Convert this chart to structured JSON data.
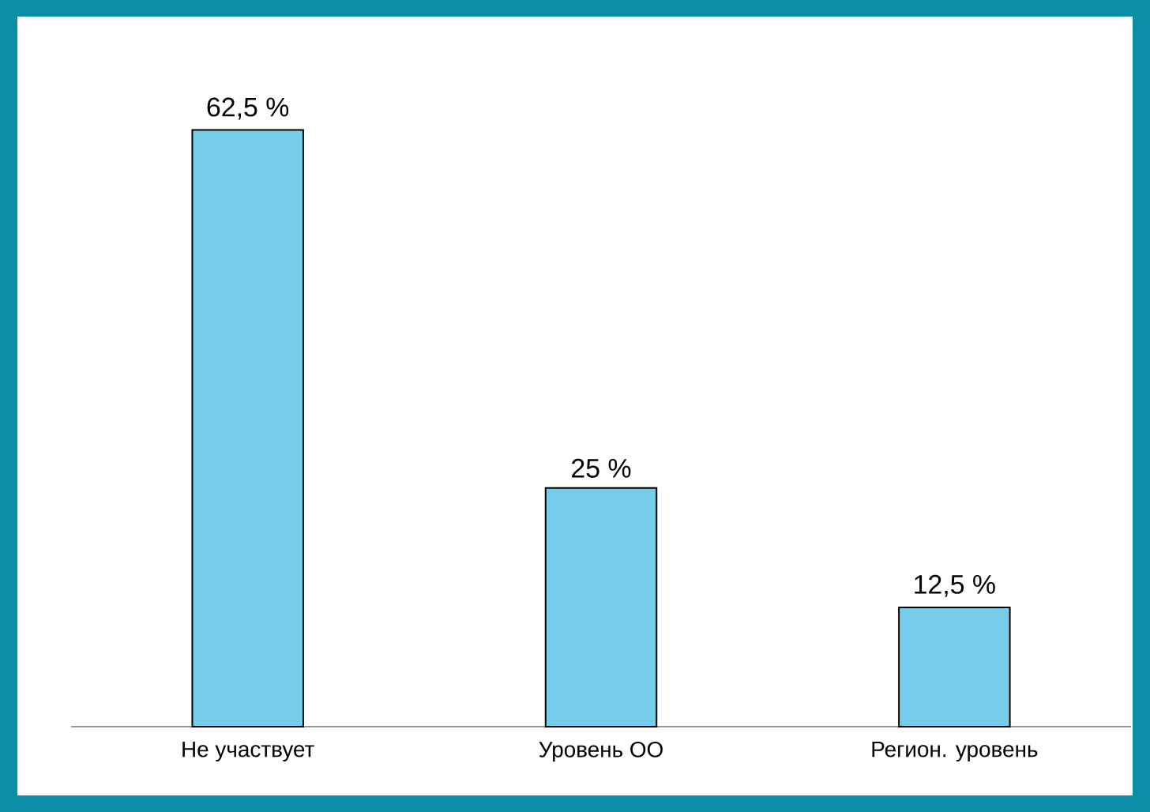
{
  "chart_data": {
    "type": "bar",
    "categories": [
      "Не участвует",
      "Уровень ОО",
      "Регион. уровень"
    ],
    "values": [
      62.5,
      25,
      12.5
    ],
    "value_labels": [
      "62,5 %",
      "25 %",
      "12,5 %"
    ],
    "color": "#75cde9"
  }
}
